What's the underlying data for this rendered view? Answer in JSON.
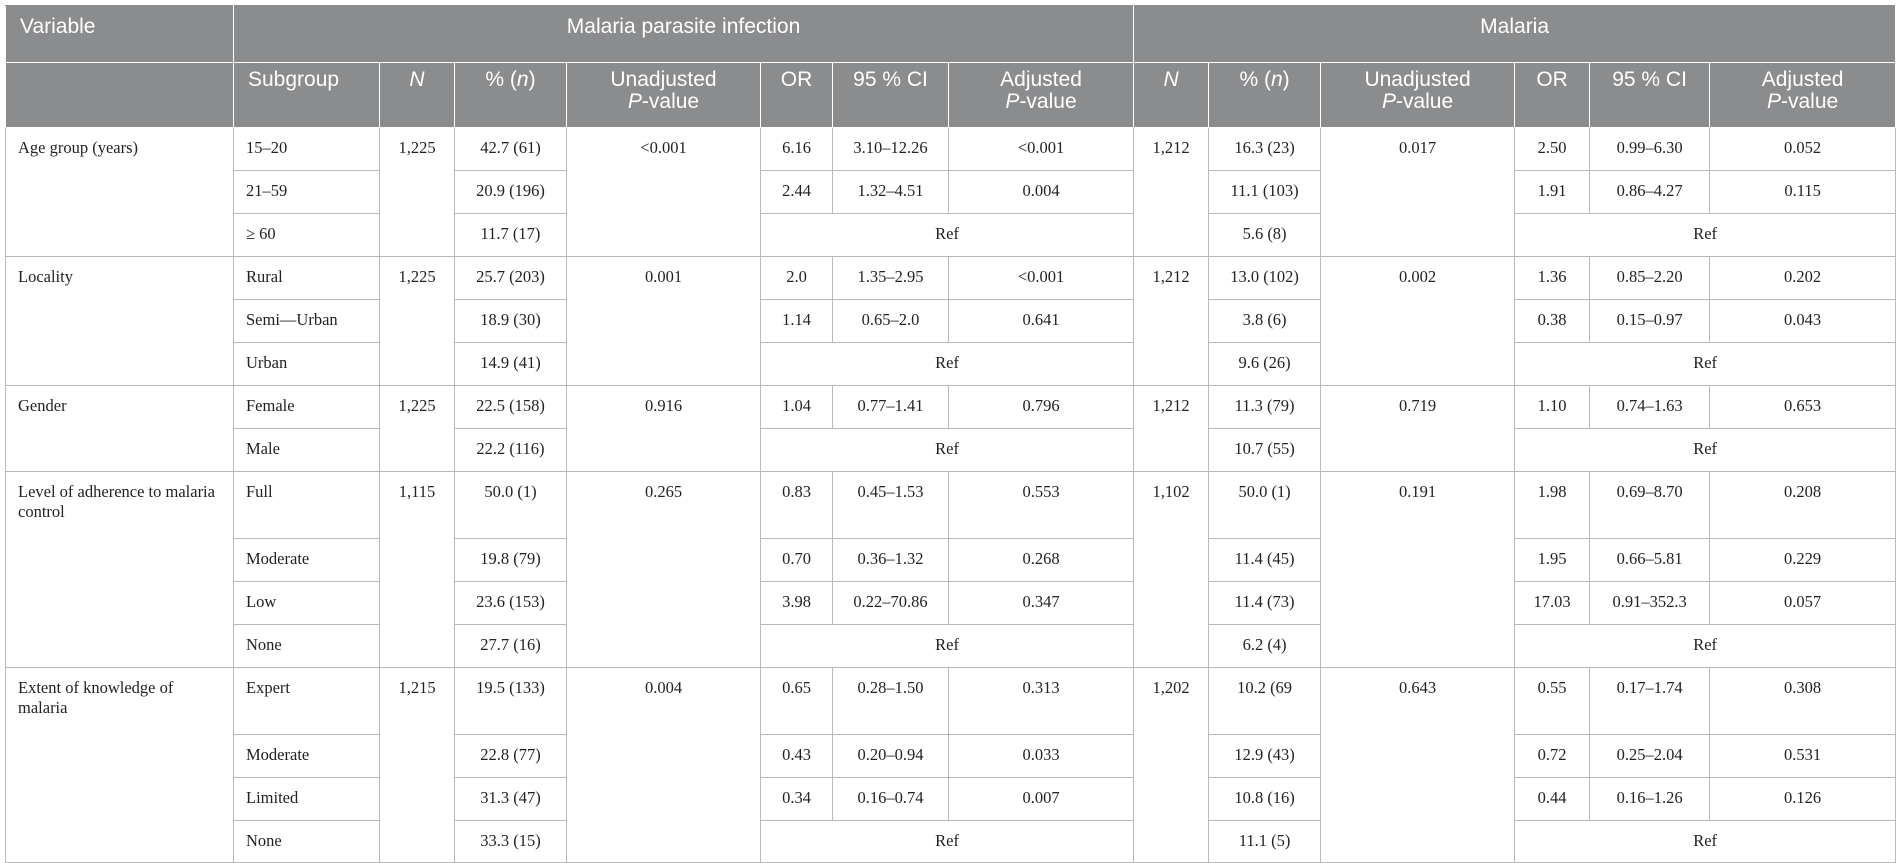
{
  "header": {
    "variable": "Variable",
    "group_parasite": "Malaria parasite infection",
    "group_malaria": "Malaria",
    "subgroup": "Subgroup",
    "n": "N",
    "pct_prefix": "% (",
    "pct_n": "n",
    "pct_suffix": ")",
    "unadj_1": "Unadjusted",
    "adj_1": "Adjusted",
    "pvalue_p": "P",
    "pvalue_rest": "-value",
    "or": "OR",
    "ci": "95 % CI"
  },
  "ref_label": "Ref",
  "variables": [
    {
      "name": "Age group (years)",
      "parasite_n": "1,225",
      "parasite_unadj_p": "<0.001",
      "malaria_n": "1,212",
      "malaria_unadj_p": "0.017",
      "rows": [
        {
          "subgroup": "15–20",
          "p_pct": "42.7 (61)",
          "p_or": "6.16",
          "p_ci": "3.10–12.26",
          "p_adj": "<0.001",
          "m_pct": "16.3 (23)",
          "m_or": "2.50",
          "m_ci": "0.99–6.30",
          "m_adj": "0.052"
        },
        {
          "subgroup": "21–59",
          "p_pct": "20.9 (196)",
          "p_or": "2.44",
          "p_ci": "1.32–4.51",
          "p_adj": "0.004",
          "m_pct": "11.1 (103)",
          "m_or": "1.91",
          "m_ci": "0.86–4.27",
          "m_adj": "0.115"
        },
        {
          "subgroup": "≥ 60",
          "p_pct": "11.7 (17)",
          "m_pct": "5.6 (8)"
        }
      ]
    },
    {
      "name": "Locality",
      "parasite_n": "1,225",
      "parasite_unadj_p": "0.001",
      "malaria_n": "1,212",
      "malaria_unadj_p": "0.002",
      "rows": [
        {
          "subgroup": "Rural",
          "p_pct": "25.7 (203)",
          "p_or": "2.0",
          "p_ci": "1.35–2.95",
          "p_adj": "<0.001",
          "m_pct": "13.0 (102)",
          "m_or": "1.36",
          "m_ci": "0.85–2.20",
          "m_adj": "0.202"
        },
        {
          "subgroup": "Semi—Urban",
          "p_pct": "18.9 (30)",
          "p_or": "1.14",
          "p_ci": "0.65–2.0",
          "p_adj": "0.641",
          "m_pct": "3.8 (6)",
          "m_or": "0.38",
          "m_ci": "0.15–0.97",
          "m_adj": "0.043"
        },
        {
          "subgroup": "Urban",
          "p_pct": "14.9 (41)",
          "m_pct": "9.6 (26)"
        }
      ]
    },
    {
      "name": "Gender",
      "parasite_n": "1,225",
      "parasite_unadj_p": "0.916",
      "malaria_n": "1,212",
      "malaria_unadj_p": "0.719",
      "rows": [
        {
          "subgroup": "Female",
          "p_pct": "22.5 (158)",
          "p_or": "1.04",
          "p_ci": "0.77–1.41",
          "p_adj": "0.796",
          "m_pct": "11.3 (79)",
          "m_or": "1.10",
          "m_ci": "0.74–1.63",
          "m_adj": "0.653"
        },
        {
          "subgroup": "Male",
          "p_pct": "22.2 (116)",
          "m_pct": "10.7 (55)"
        }
      ]
    },
    {
      "name": "Level of adherence to malaria control",
      "parasite_n": "1,115",
      "parasite_unadj_p": "0.265",
      "malaria_n": "1,102",
      "malaria_unadj_p": "0.191",
      "rows": [
        {
          "subgroup": "Full",
          "p_pct": "50.0 (1)",
          "p_or": "0.83",
          "p_ci": "0.45–1.53",
          "p_adj": "0.553",
          "m_pct": "50.0 (1)",
          "m_or": "1.98",
          "m_ci": "0.69–8.70",
          "m_adj": "0.208"
        },
        {
          "subgroup": "Moderate",
          "p_pct": "19.8 (79)",
          "p_or": "0.70",
          "p_ci": "0.36–1.32",
          "p_adj": "0.268",
          "m_pct": "11.4 (45)",
          "m_or": "1.95",
          "m_ci": "0.66–5.81",
          "m_adj": "0.229"
        },
        {
          "subgroup": "Low",
          "p_pct": "23.6 (153)",
          "p_or": "3.98",
          "p_ci": "0.22–70.86",
          "p_adj": "0.347",
          "m_pct": "11.4 (73)",
          "m_or": "17.03",
          "m_ci": "0.91–352.3",
          "m_adj": "0.057"
        },
        {
          "subgroup": "None",
          "p_pct": "27.7 (16)",
          "m_pct": "6.2 (4)"
        }
      ]
    },
    {
      "name": "Extent of knowledge of malaria",
      "parasite_n": "1,215",
      "parasite_unadj_p": "0.004",
      "malaria_n": "1,202",
      "malaria_unadj_p": "0.643",
      "rows": [
        {
          "subgroup": "Expert",
          "p_pct": "19.5 (133)",
          "p_or": "0.65",
          "p_ci": "0.28–1.50",
          "p_adj": "0.313",
          "m_pct": "10.2 (69",
          "m_or": "0.55",
          "m_ci": "0.17–1.74",
          "m_adj": "0.308"
        },
        {
          "subgroup": "Moderate",
          "p_pct": "22.8 (77)",
          "p_or": "0.43",
          "p_ci": "0.20–0.94",
          "p_adj": "0.033",
          "m_pct": "12.9 (43)",
          "m_or": "0.72",
          "m_ci": "0.25–2.04",
          "m_adj": "0.531"
        },
        {
          "subgroup": "Limited",
          "p_pct": "31.3 (47)",
          "p_or": "0.34",
          "p_ci": "0.16–0.74",
          "p_adj": "0.007",
          "m_pct": "10.8 (16)",
          "m_or": "0.44",
          "m_ci": "0.16–1.26",
          "m_adj": "0.126"
        },
        {
          "subgroup": "None",
          "p_pct": "33.3 (15)",
          "m_pct": "11.1 (5)"
        }
      ]
    }
  ]
}
